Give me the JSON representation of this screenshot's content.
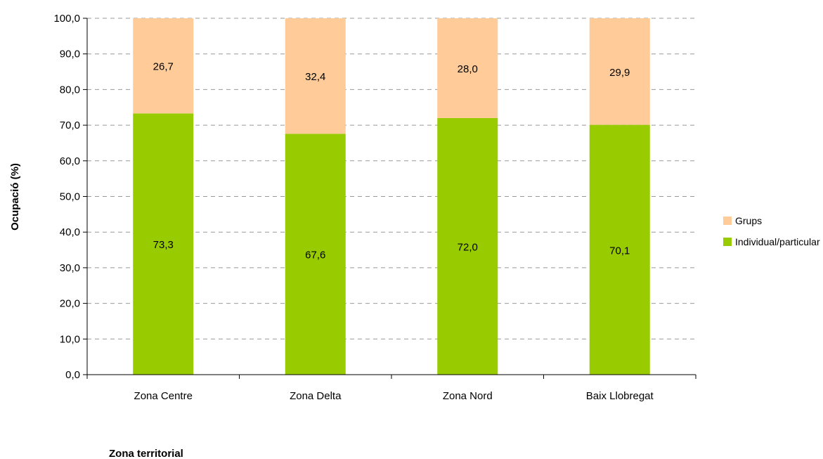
{
  "chart_data": {
    "type": "bar",
    "stacked": true,
    "categories": [
      "Zona Centre",
      "Zona Delta",
      "Zona Nord",
      "Baix Llobregat"
    ],
    "series": [
      {
        "name": "Individual/particular",
        "values": [
          73.3,
          67.6,
          72.0,
          70.1
        ],
        "labels": [
          "73,3",
          "67,6",
          "72,0",
          "70,1"
        ],
        "color": "#99cc00"
      },
      {
        "name": "Grups",
        "values": [
          26.7,
          32.4,
          28.0,
          29.9
        ],
        "labels": [
          "26,7",
          "32,4",
          "28,0",
          "29,9"
        ],
        "color": "#ffcc99"
      }
    ],
    "title": "",
    "xlabel": "Zona territorial",
    "ylabel": "Ocupació (%)",
    "ylim": [
      0,
      100
    ],
    "yticks": [
      "0,0",
      "10,0",
      "20,0",
      "30,0",
      "40,0",
      "50,0",
      "60,0",
      "70,0",
      "80,0",
      "90,0",
      "100,0"
    ],
    "grid": true,
    "legend_position": "right",
    "legend_order": [
      "Grups",
      "Individual/particular"
    ]
  }
}
